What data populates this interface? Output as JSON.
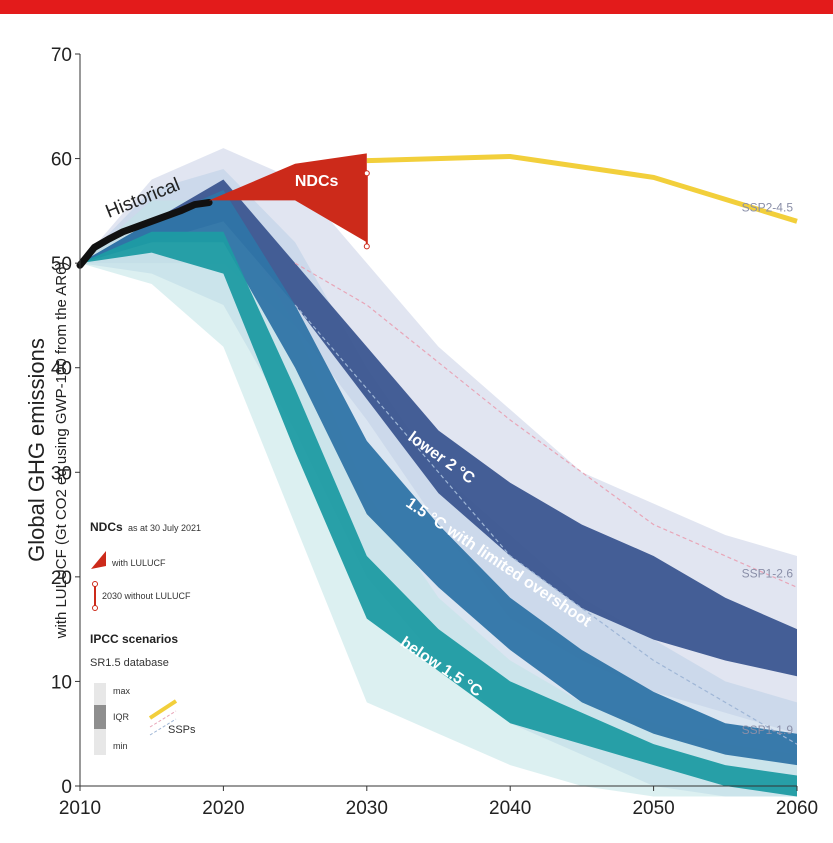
{
  "chart_data": {
    "type": "area",
    "ylabel": "Global GHG emissions",
    "ylabel_sub": "with LULUCF (Gt CO2 eq using GWP-100 from the AR6)",
    "xlim": [
      2010,
      2060
    ],
    "ylim": [
      0,
      70
    ],
    "x_ticks": [
      "2010",
      "2020",
      "2030",
      "2040",
      "2050",
      "2060"
    ],
    "y_ticks": [
      "0",
      "10",
      "20",
      "30",
      "40",
      "50",
      "60",
      "70"
    ],
    "x_axis_ticks": [
      2010,
      2020,
      2030,
      2040,
      2050,
      2060
    ],
    "y_axis_ticks": [
      0,
      10,
      20,
      30,
      40,
      50,
      60,
      70
    ],
    "bands": [
      {
        "id": "lower2c",
        "label": "lower 2 °C",
        "label_x": 2035,
        "label_y": 31,
        "color": "#3b5690",
        "light_color": "#c9cfe6",
        "x": [
          2010,
          2015,
          2020,
          2025,
          2030,
          2035,
          2040,
          2045,
          2050,
          2055,
          2060
        ],
        "max_range": [
          [
            2010,
            50
          ],
          [
            2015,
            58
          ],
          [
            2020,
            61
          ],
          [
            2025,
            58
          ],
          [
            2030,
            50
          ],
          [
            2035,
            42
          ],
          [
            2040,
            36
          ],
          [
            2045,
            30
          ],
          [
            2050,
            27
          ],
          [
            2055,
            24
          ],
          [
            2060,
            22
          ]
        ],
        "min_range": [
          [
            2010,
            50
          ],
          [
            2015,
            50
          ],
          [
            2020,
            50
          ],
          [
            2025,
            44
          ],
          [
            2030,
            35
          ],
          [
            2035,
            25
          ],
          [
            2040,
            16
          ],
          [
            2045,
            12
          ],
          [
            2050,
            9
          ],
          [
            2055,
            7
          ],
          [
            2060,
            5
          ]
        ],
        "iqr_upper": [
          [
            2010,
            50
          ],
          [
            2015,
            54
          ],
          [
            2020,
            58
          ],
          [
            2025,
            50
          ],
          [
            2030,
            42
          ],
          [
            2035,
            34
          ],
          [
            2040,
            29
          ],
          [
            2045,
            25
          ],
          [
            2050,
            22
          ],
          [
            2055,
            18
          ],
          [
            2060,
            15
          ]
        ],
        "iqr_lower": [
          [
            2010,
            50
          ],
          [
            2015,
            52
          ],
          [
            2020,
            54
          ],
          [
            2025,
            46
          ],
          [
            2030,
            37
          ],
          [
            2035,
            28
          ],
          [
            2040,
            22
          ],
          [
            2045,
            17
          ],
          [
            2050,
            14
          ],
          [
            2055,
            12
          ],
          [
            2060,
            10.5
          ]
        ]
      },
      {
        "id": "limited_overshoot",
        "label": "1.5 °C with limited overshoot",
        "label_x": 2039,
        "label_y": 21,
        "color": "#2f74a6",
        "light_color": "#bcd0e5",
        "x": [
          2010,
          2015,
          2020,
          2025,
          2030,
          2035,
          2040,
          2045,
          2050,
          2055,
          2060
        ],
        "max_range": [
          [
            2010,
            50
          ],
          [
            2015,
            57
          ],
          [
            2020,
            59
          ],
          [
            2025,
            52
          ],
          [
            2030,
            40
          ],
          [
            2035,
            30
          ],
          [
            2040,
            24
          ],
          [
            2045,
            18
          ],
          [
            2050,
            14
          ],
          [
            2055,
            10
          ],
          [
            2060,
            8
          ]
        ],
        "min_range": [
          [
            2010,
            50
          ],
          [
            2015,
            49
          ],
          [
            2020,
            46
          ],
          [
            2025,
            34
          ],
          [
            2030,
            20
          ],
          [
            2035,
            12
          ],
          [
            2040,
            6
          ],
          [
            2045,
            3
          ],
          [
            2050,
            0
          ],
          [
            2055,
            -1
          ],
          [
            2060,
            -1
          ]
        ],
        "iqr_upper": [
          [
            2010,
            50
          ],
          [
            2015,
            54
          ],
          [
            2020,
            57
          ],
          [
            2025,
            46
          ],
          [
            2030,
            33
          ],
          [
            2035,
            25
          ],
          [
            2040,
            18
          ],
          [
            2045,
            13
          ],
          [
            2050,
            9
          ],
          [
            2055,
            6
          ],
          [
            2060,
            5
          ]
        ],
        "iqr_lower": [
          [
            2010,
            50
          ],
          [
            2015,
            52
          ],
          [
            2020,
            52
          ],
          [
            2025,
            40
          ],
          [
            2030,
            26
          ],
          [
            2035,
            19
          ],
          [
            2040,
            13
          ],
          [
            2045,
            8
          ],
          [
            2050,
            5
          ],
          [
            2055,
            3
          ],
          [
            2060,
            2
          ]
        ]
      },
      {
        "id": "below15c",
        "label": "below 1.5 °C",
        "label_x": 2035,
        "label_y": 11,
        "color": "#1e9ba3",
        "light_color": "#bfe3e6",
        "x": [
          2010,
          2015,
          2020,
          2025,
          2030,
          2035,
          2040,
          2045,
          2050,
          2055,
          2060
        ],
        "max_range": [
          [
            2010,
            50
          ],
          [
            2015,
            56
          ],
          [
            2020,
            56
          ],
          [
            2025,
            44
          ],
          [
            2030,
            28
          ],
          [
            2035,
            18
          ],
          [
            2040,
            12
          ],
          [
            2045,
            8
          ],
          [
            2050,
            6
          ],
          [
            2055,
            4
          ],
          [
            2060,
            3
          ]
        ],
        "min_range": [
          [
            2010,
            50
          ],
          [
            2015,
            48
          ],
          [
            2020,
            42
          ],
          [
            2025,
            25
          ],
          [
            2030,
            8
          ],
          [
            2035,
            5
          ],
          [
            2040,
            2
          ],
          [
            2045,
            0
          ],
          [
            2050,
            -1
          ],
          [
            2055,
            -1
          ],
          [
            2060,
            -1
          ]
        ],
        "iqr_upper": [
          [
            2010,
            50
          ],
          [
            2015,
            53
          ],
          [
            2020,
            53
          ],
          [
            2025,
            38
          ],
          [
            2030,
            22
          ],
          [
            2035,
            15
          ],
          [
            2040,
            10
          ],
          [
            2045,
            7
          ],
          [
            2050,
            4
          ],
          [
            2055,
            2
          ],
          [
            2060,
            1
          ]
        ],
        "iqr_lower": [
          [
            2010,
            50
          ],
          [
            2015,
            51
          ],
          [
            2020,
            49
          ],
          [
            2025,
            32
          ],
          [
            2030,
            16
          ],
          [
            2035,
            11
          ],
          [
            2040,
            6
          ],
          [
            2045,
            4
          ],
          [
            2050,
            2
          ],
          [
            2055,
            0
          ],
          [
            2060,
            -1
          ]
        ]
      }
    ],
    "historical": {
      "label": "Historical",
      "points": [
        [
          2010,
          49.8
        ],
        [
          2011,
          51.5
        ],
        [
          2012,
          52.3
        ],
        [
          2013,
          53
        ],
        [
          2014,
          53.5
        ],
        [
          2015,
          54
        ],
        [
          2016,
          54.5
        ],
        [
          2017,
          55
        ],
        [
          2018,
          55.6
        ],
        [
          2019,
          55.8
        ]
      ]
    },
    "ndcs": {
      "label": "NDCs",
      "upper": [
        [
          2019,
          56
        ],
        [
          2025,
          59.5
        ],
        [
          2030,
          60.5
        ]
      ],
      "lower": [
        [
          2019,
          56
        ],
        [
          2025,
          56
        ],
        [
          2030,
          52
        ]
      ],
      "without_lulucf_2030": [
        51.6,
        58.6
      ]
    },
    "ssp_lines": [
      {
        "name": "SSP2-4.5",
        "color": "#f2cf3b",
        "points": [
          [
            2030,
            59.8
          ],
          [
            2040,
            60.2
          ],
          [
            2050,
            58.2
          ],
          [
            2060,
            54
          ]
        ]
      },
      {
        "name": "SSP1-2.6",
        "color": "#e8a6b8",
        "points": [
          [
            2025,
            50
          ],
          [
            2030,
            46
          ],
          [
            2040,
            35
          ],
          [
            2050,
            25
          ],
          [
            2060,
            19
          ]
        ]
      },
      {
        "name": "SSP1-1.9",
        "color": "#9fb6d6",
        "points": [
          [
            2025,
            46
          ],
          [
            2030,
            38
          ],
          [
            2040,
            22
          ],
          [
            2050,
            12
          ],
          [
            2060,
            4
          ]
        ]
      }
    ],
    "legend": {
      "ndc_title": "NDCs",
      "ndc_subtitle": "as at 30 July 2021",
      "with_lulucf": "with LULUCF",
      "without_lulucf": "2030 without LULUCF",
      "ipcc_title": "IPCC scenarios",
      "sr15": "SR1.5 database",
      "max": "max",
      "iqr": "IQR",
      "min": "min",
      "ssps": "SSPs",
      "placement": "bottom-left"
    }
  }
}
